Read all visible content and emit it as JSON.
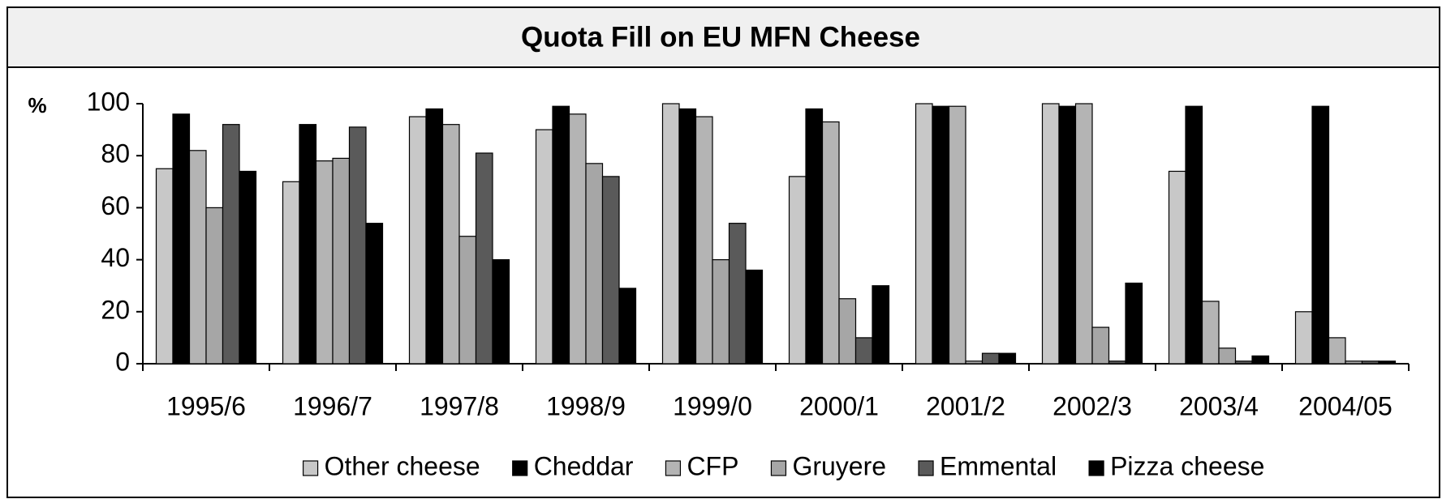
{
  "chart_data": {
    "type": "bar",
    "title": "Quota Fill on EU MFN Cheese",
    "ylabel": "%",
    "categories": [
      "1995/6",
      "1996/7",
      "1997/8",
      "1998/9",
      "1999/0",
      "2000/1",
      "2001/2",
      "2002/3",
      "2003/4",
      "2004/05"
    ],
    "series": [
      {
        "name": "Other cheese",
        "color": "#c8c8c8",
        "values": [
          75,
          70,
          95,
          90,
          100,
          72,
          100,
          100,
          74,
          20
        ]
      },
      {
        "name": "Cheddar",
        "color": "#000000",
        "values": [
          96,
          92,
          98,
          99,
          98,
          98,
          99,
          99,
          99,
          99
        ]
      },
      {
        "name": "CFP",
        "color": "#b4b4b4",
        "values": [
          82,
          78,
          92,
          96,
          95,
          93,
          99,
          100,
          24,
          10
        ]
      },
      {
        "name": "Gruyere",
        "color": "#a6a6a6",
        "values": [
          60,
          79,
          49,
          77,
          40,
          25,
          1,
          14,
          6,
          1
        ]
      },
      {
        "name": "Emmental",
        "color": "#5a5a5a",
        "values": [
          92,
          91,
          81,
          72,
          54,
          10,
          4,
          1,
          1,
          1
        ]
      },
      {
        "name": "Pizza cheese",
        "color": "#000000",
        "values": [
          74,
          54,
          40,
          29,
          36,
          30,
          4,
          31,
          3,
          1
        ]
      }
    ],
    "ylim": [
      0,
      100
    ],
    "yticks": [
      0,
      20,
      40,
      60,
      80,
      100
    ],
    "legend": "bottom"
  }
}
